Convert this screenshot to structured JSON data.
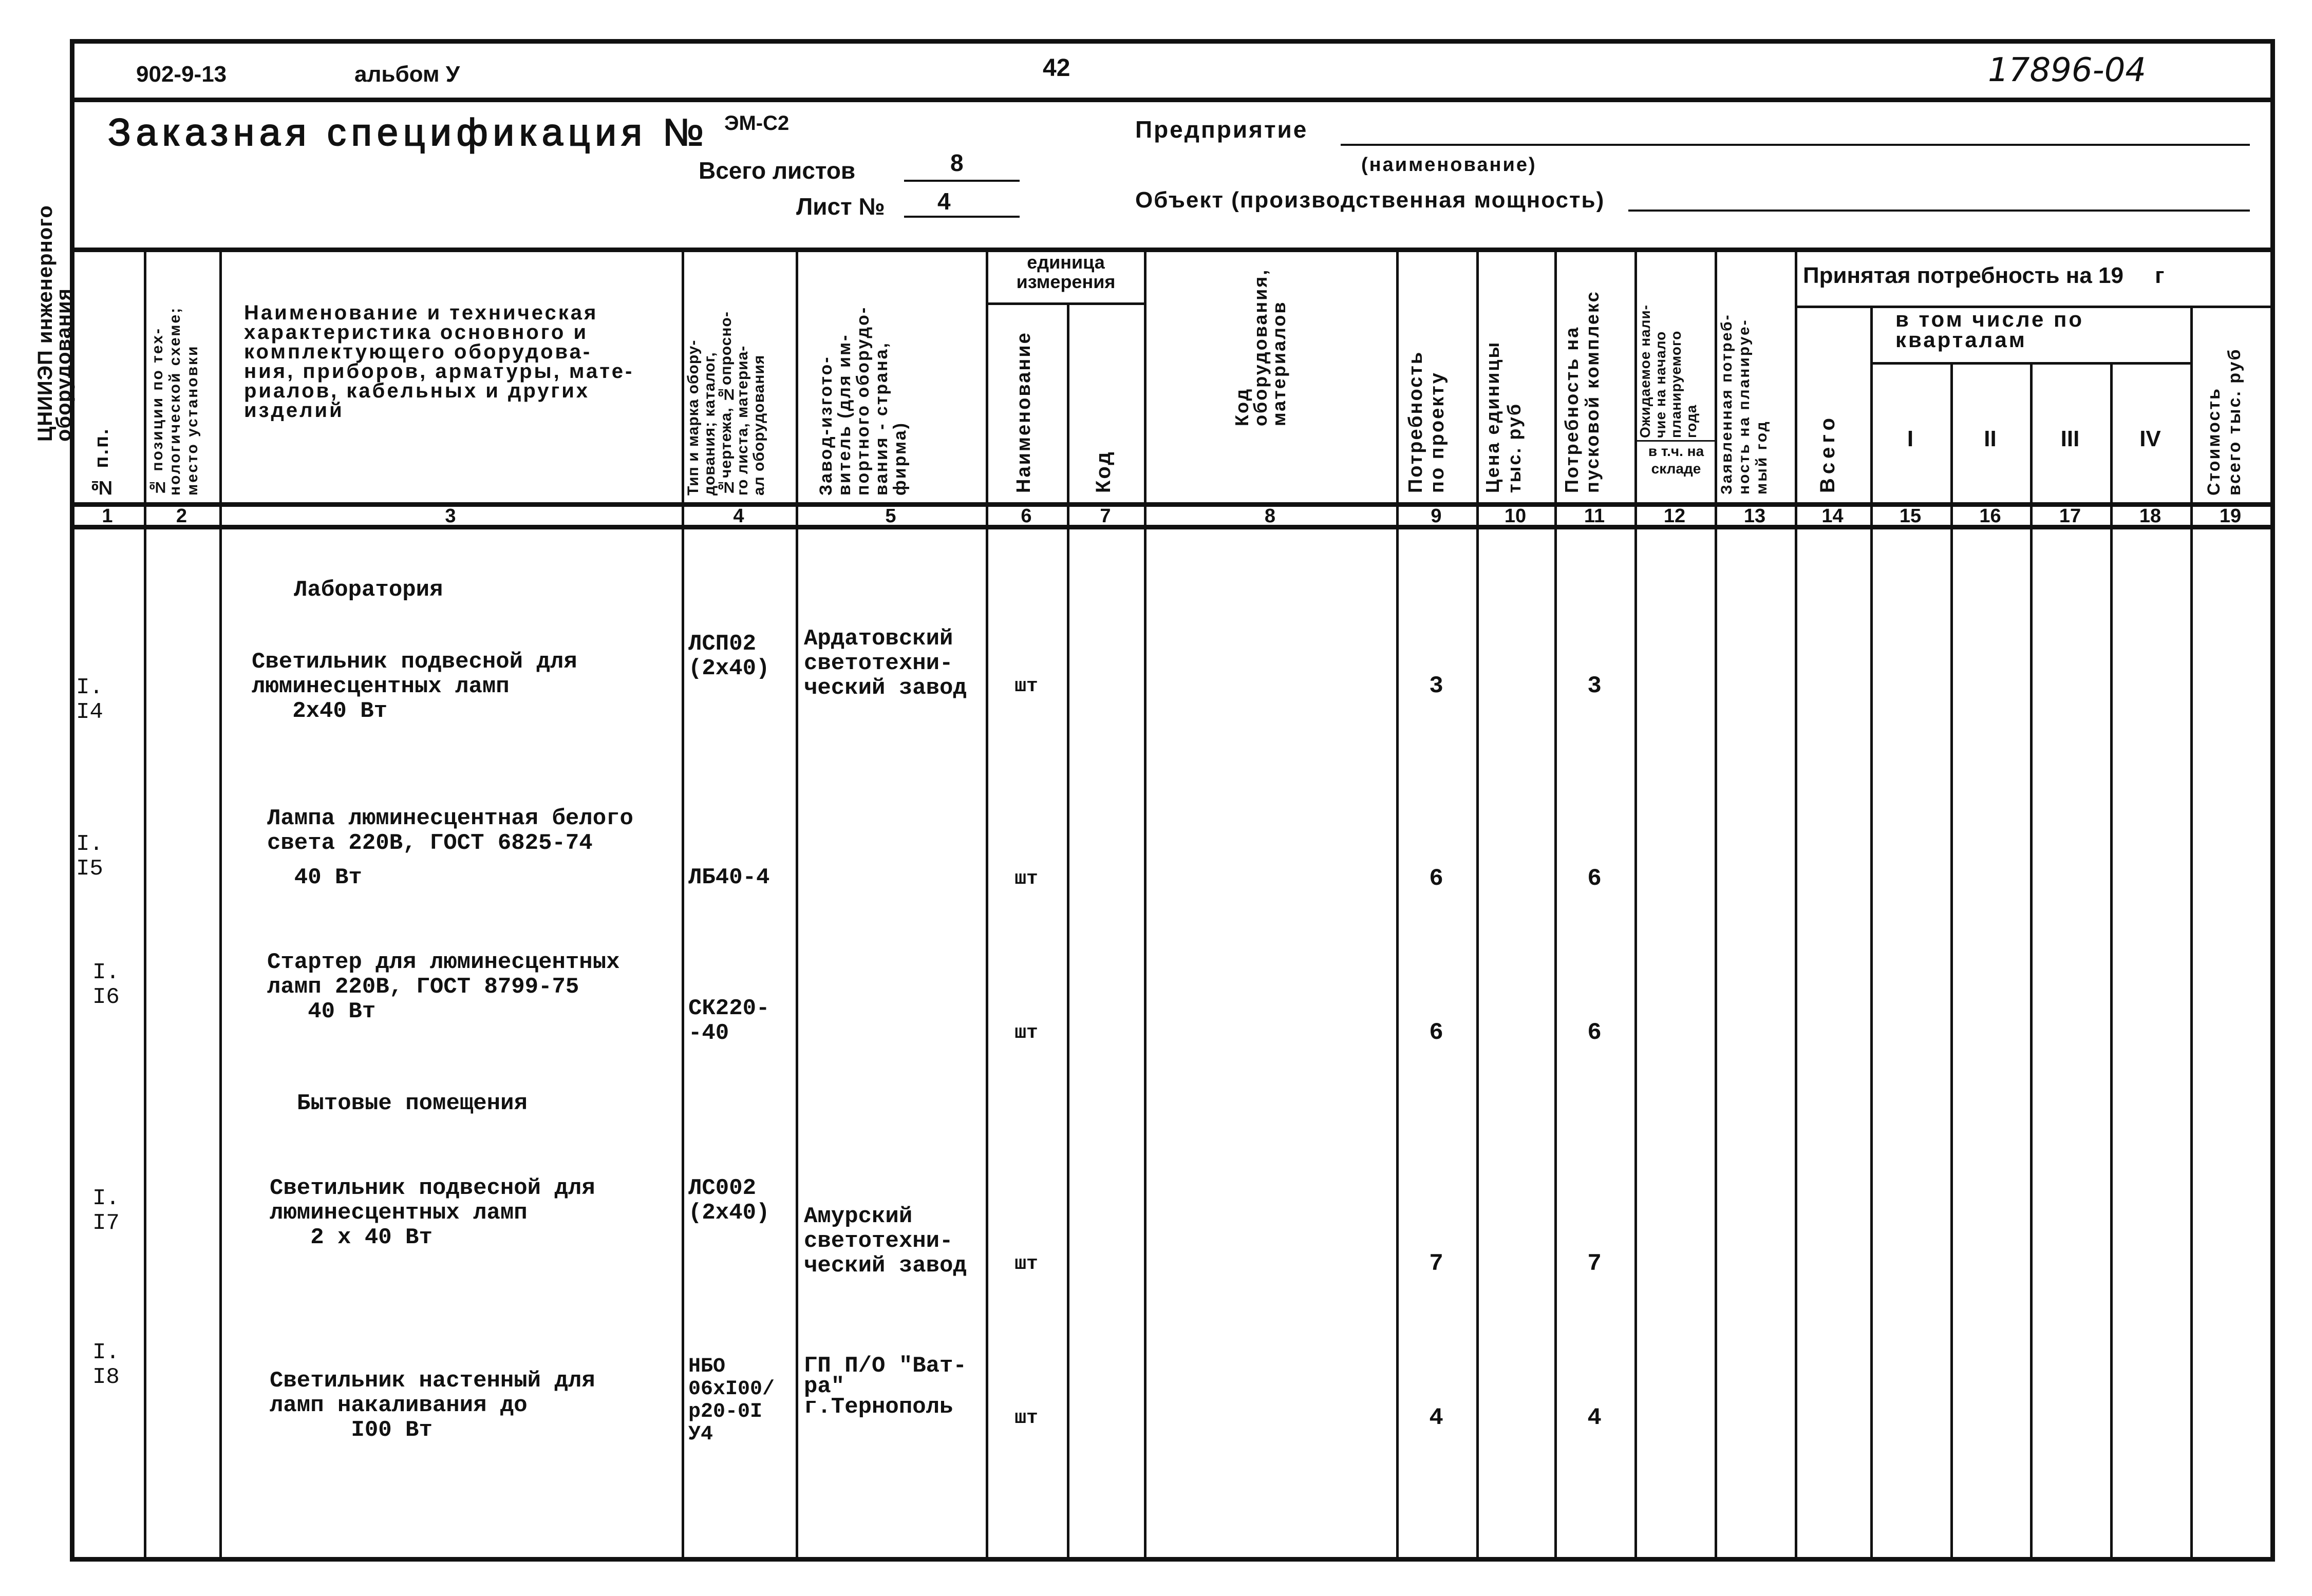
{
  "margin_text": "ЦНИИЭП инженерного оборудования",
  "top": {
    "project": "902-9-13",
    "album": "альбом У",
    "page": "42",
    "doc_number": "17896-04"
  },
  "title": {
    "label": "Заказная спецификация №",
    "number": "ЭМ-С2"
  },
  "sheets": {
    "total_label": "Всего листов",
    "total": "8",
    "sheet_label": "Лист №",
    "sheet": "4"
  },
  "enterprise": {
    "label": "Предприятие",
    "hint": "(наименование)",
    "object_label": "Объект (производственная мощность)"
  },
  "columns": {
    "c1": "№ п.п.",
    "c2": "№ позиции по тех-\nнологической схеме;\nместо установки",
    "c3": "Наименование и техническая\nхарактеристика основного и\nкомплектующего оборудова-\nния, приборов, арматуры, мате-\nриалов, кабельных и других\nизделий",
    "c4": "Тип и марка обору-\nдования; каталог,\n№чертежа, №опросно-\nго листа, материа-\nал оборудования",
    "c5": "Завод-изгото-\nвитель (для им-\nпортного оборудо-\nвания - страна,\nфирма)",
    "unit_group": "единица измерения",
    "c6": "Наименование",
    "c7": "Код",
    "c8": "Код оборудования,\nматериалов",
    "c9": "Потребность\nпо проекту",
    "c10": "Цена единицы\nтыс. руб",
    "c11": "Потребность на\nпусковой комплекс",
    "c12": "Ожидаемое нали-\nчие на начало\nпланируемого\nгода",
    "c12_sub": "в т.ч. на складе",
    "c13": "Заявленная потреб-\nность на планируе-\nмый год",
    "accepted_group": "Принятая потребность на 19     г",
    "c14": "Всего",
    "quarters_group": "в том числе по кварталам",
    "c15": "I",
    "c16": "II",
    "c17": "III",
    "c18": "IV",
    "c19": "Стоимость\nвсего тыс. руб"
  },
  "column_numbers": [
    "1",
    "2",
    "3",
    "4",
    "5",
    "6",
    "7",
    "8",
    "9",
    "10",
    "11",
    "12",
    "13",
    "14",
    "15",
    "16",
    "17",
    "18",
    "19"
  ],
  "sections": [
    "Лаборатория",
    "Бытовые помещения"
  ],
  "rows": [
    {
      "pos": "I.\nI4",
      "name": "Светильник подвесной для\nлюминесцентных ламп\n   2х40 Вт",
      "type": "ЛСП02\n(2х40)",
      "maker": "Ардатовский\nсветотехни-\nческий завод",
      "unit": "шт",
      "need": "3",
      "startup": "3"
    },
    {
      "pos": "I.\nI5",
      "name": "Лампа люминесцентная белого\nсвета 220В, ГОСТ 6825-74",
      "name2": "  40 Вт",
      "type": "ЛБ40-4",
      "maker": "",
      "unit": "шт",
      "need": "6",
      "startup": "6"
    },
    {
      "pos": "I.\nI6",
      "name": "Стартер для люминесцентных\nламп 220В, ГОСТ 8799-75\n   40 Вт",
      "type": "СК220-\n-40",
      "maker": "",
      "unit": "шт",
      "need": "6",
      "startup": "6"
    },
    {
      "pos": "I.\nI7",
      "name": "Светильник подвесной для\nлюминесцентных ламп\n   2 х 40 Вт",
      "type": "ЛС002\n(2х40)",
      "maker": "Амурский\nсветотехни-\nческий завод",
      "unit": "шт",
      "need": "7",
      "startup": "7"
    },
    {
      "pos": "I.\nI8",
      "name": "Светильник настенный для\nламп накаливания до\n      I00 Вт",
      "type": "НБО\n06хI00/\nр20-0I\nУ4",
      "maker": "ГП П/О \"Ват-\nра\"\nг.Тернополь",
      "unit": "шт",
      "need": "4",
      "startup": "4"
    }
  ]
}
